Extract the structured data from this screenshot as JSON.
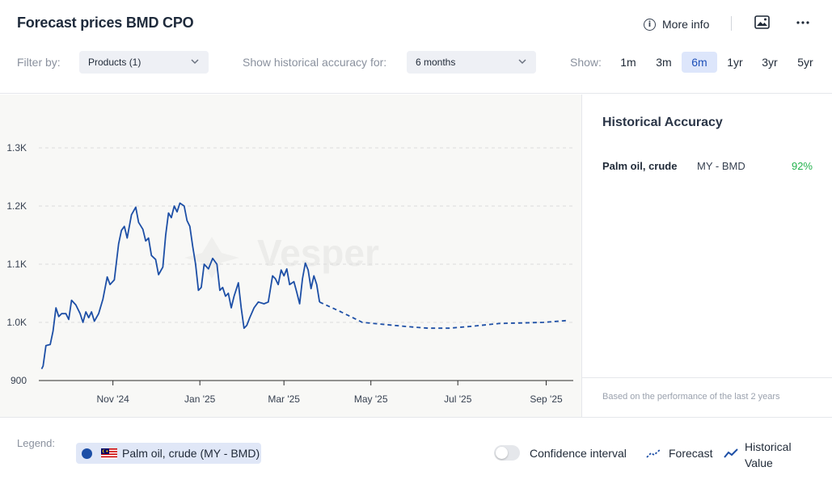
{
  "header": {
    "title": "Forecast prices BMD CPO",
    "more_info": "More info",
    "info_icon_glyph": "i"
  },
  "filters": {
    "filter_by_label": "Filter by:",
    "products_value": "Products (1)",
    "historical_label": "Show historical accuracy for:",
    "historical_value": "6 months",
    "show_label": "Show:",
    "ranges": [
      "1m",
      "3m",
      "6m",
      "1yr",
      "3yr",
      "5yr"
    ],
    "active_range": "6m"
  },
  "chart_data": {
    "type": "line",
    "watermark": "Vesper",
    "y_ticks": [
      "900",
      "1.0K",
      "1.1K",
      "1.2K",
      "1.3K"
    ],
    "y_tick_values": [
      900,
      1000,
      1100,
      1200,
      1300
    ],
    "ylim": [
      900,
      1350
    ],
    "x_ticks": [
      {
        "label": "Nov '24",
        "date": "2024-11-01"
      },
      {
        "label": "Jan '25",
        "date": "2025-01-01"
      },
      {
        "label": "Mar '25",
        "date": "2025-03-01"
      },
      {
        "label": "May '25",
        "date": "2025-05-01"
      },
      {
        "label": "Jul '25",
        "date": "2025-07-01"
      },
      {
        "label": "Sep '25",
        "date": "2025-09-01"
      }
    ],
    "xlim": [
      "2024-09-10",
      "2025-09-20"
    ],
    "grid": "horizontal dashed",
    "series": [
      {
        "name": "Historical Value",
        "style": "solid",
        "color": "#1d4fa6",
        "points": [
          [
            "2024-09-12",
            920
          ],
          [
            "2024-09-13",
            925
          ],
          [
            "2024-09-15",
            960
          ],
          [
            "2024-09-18",
            962
          ],
          [
            "2024-09-20",
            985
          ],
          [
            "2024-09-22",
            1025
          ],
          [
            "2024-09-24",
            1010
          ],
          [
            "2024-09-26",
            1015
          ],
          [
            "2024-09-29",
            1015
          ],
          [
            "2024-10-01",
            1005
          ],
          [
            "2024-10-03",
            1038
          ],
          [
            "2024-10-06",
            1030
          ],
          [
            "2024-10-09",
            1015
          ],
          [
            "2024-10-11",
            1000
          ],
          [
            "2024-10-13",
            1018
          ],
          [
            "2024-10-15",
            1008
          ],
          [
            "2024-10-17",
            1018
          ],
          [
            "2024-10-19",
            1002
          ],
          [
            "2024-10-22",
            1015
          ],
          [
            "2024-10-25",
            1040
          ],
          [
            "2024-10-28",
            1078
          ],
          [
            "2024-10-30",
            1065
          ],
          [
            "2024-11-02",
            1073
          ],
          [
            "2024-11-05",
            1135
          ],
          [
            "2024-11-07",
            1158
          ],
          [
            "2024-11-09",
            1165
          ],
          [
            "2024-11-11",
            1145
          ],
          [
            "2024-11-14",
            1185
          ],
          [
            "2024-11-17",
            1198
          ],
          [
            "2024-11-19",
            1172
          ],
          [
            "2024-11-22",
            1160
          ],
          [
            "2024-11-24",
            1140
          ],
          [
            "2024-11-26",
            1145
          ],
          [
            "2024-11-28",
            1115
          ],
          [
            "2024-12-01",
            1108
          ],
          [
            "2024-12-03",
            1082
          ],
          [
            "2024-12-06",
            1095
          ],
          [
            "2024-12-08",
            1150
          ],
          [
            "2024-12-10",
            1188
          ],
          [
            "2024-12-12",
            1180
          ],
          [
            "2024-12-14",
            1200
          ],
          [
            "2024-12-16",
            1190
          ],
          [
            "2024-12-18",
            1205
          ],
          [
            "2024-12-21",
            1200
          ],
          [
            "2024-12-23",
            1175
          ],
          [
            "2024-12-25",
            1165
          ],
          [
            "2024-12-27",
            1130
          ],
          [
            "2024-12-29",
            1100
          ],
          [
            "2024-12-31",
            1055
          ],
          [
            "2025-01-02",
            1060
          ],
          [
            "2025-01-04",
            1100
          ],
          [
            "2025-01-07",
            1092
          ],
          [
            "2025-01-10",
            1110
          ],
          [
            "2025-01-13",
            1100
          ],
          [
            "2025-01-15",
            1055
          ],
          [
            "2025-01-17",
            1060
          ],
          [
            "2025-01-19",
            1045
          ],
          [
            "2025-01-21",
            1050
          ],
          [
            "2025-01-23",
            1025
          ],
          [
            "2025-01-25",
            1045
          ],
          [
            "2025-01-28",
            1068
          ],
          [
            "2025-01-30",
            1025
          ],
          [
            "2025-02-01",
            990
          ],
          [
            "2025-02-03",
            995
          ],
          [
            "2025-02-05",
            1008
          ],
          [
            "2025-02-08",
            1025
          ],
          [
            "2025-02-11",
            1035
          ],
          [
            "2025-02-15",
            1032
          ],
          [
            "2025-02-18",
            1035
          ],
          [
            "2025-02-21",
            1080
          ],
          [
            "2025-02-23",
            1075
          ],
          [
            "2025-02-25",
            1065
          ],
          [
            "2025-02-27",
            1090
          ],
          [
            "2025-03-01",
            1080
          ],
          [
            "2025-03-03",
            1092
          ],
          [
            "2025-03-05",
            1065
          ],
          [
            "2025-03-08",
            1070
          ],
          [
            "2025-03-10",
            1052
          ],
          [
            "2025-03-12",
            1032
          ],
          [
            "2025-03-14",
            1075
          ],
          [
            "2025-03-16",
            1102
          ],
          [
            "2025-03-18",
            1090
          ],
          [
            "2025-03-20",
            1058
          ],
          [
            "2025-03-22",
            1080
          ],
          [
            "2025-03-24",
            1065
          ],
          [
            "2025-03-26",
            1035
          ]
        ]
      },
      {
        "name": "Forecast",
        "style": "dashed",
        "color": "#1d4fa6",
        "points": [
          [
            "2025-03-26",
            1035
          ],
          [
            "2025-04-10",
            1018
          ],
          [
            "2025-04-25",
            1000
          ],
          [
            "2025-05-25",
            993
          ],
          [
            "2025-06-10",
            990
          ],
          [
            "2025-06-25",
            990
          ],
          [
            "2025-07-10",
            993
          ],
          [
            "2025-07-30",
            998
          ],
          [
            "2025-08-30",
            1000
          ],
          [
            "2025-09-15",
            1003
          ]
        ]
      }
    ]
  },
  "side_panel": {
    "title": "Historical Accuracy",
    "rows": [
      {
        "product": "Palm oil, crude",
        "exchange": "MY - BMD",
        "accuracy": "92%"
      }
    ],
    "footnote": "Based on the performance of the last 2 years"
  },
  "legend": {
    "label": "Legend:",
    "chip_label": "Palm oil, crude (MY - BMD)",
    "confidence_label": "Confidence interval",
    "forecast_label": "Forecast",
    "historical_label_1": "Historical",
    "historical_label_2": "Value"
  },
  "colors": {
    "series": "#1d4fa6",
    "accuracy": "#22b24c",
    "active_range_bg": "#dde6fb"
  }
}
